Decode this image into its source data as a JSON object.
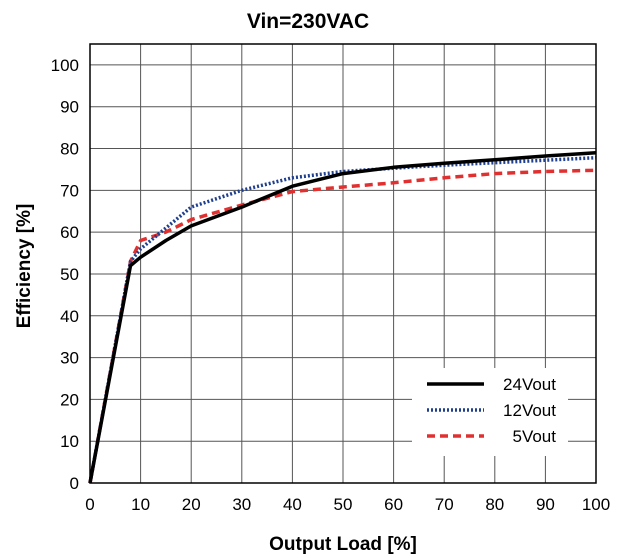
{
  "chart_data": {
    "type": "line",
    "title": "Vin=230VAC",
    "xlabel": "Output Load [%]",
    "ylabel": "Efficiency [%]",
    "xlim": [
      0,
      100
    ],
    "ylim": [
      0,
      105
    ],
    "xticks": [
      0,
      10,
      20,
      30,
      40,
      50,
      60,
      70,
      80,
      90,
      100
    ],
    "yticks": [
      0,
      10,
      20,
      30,
      40,
      50,
      60,
      70,
      80,
      90,
      100
    ],
    "grid": true,
    "legend_position": "bottom-right",
    "series": [
      {
        "name": "24Vout",
        "color": "#000000",
        "style": "solid",
        "x": [
          0,
          8,
          10,
          15,
          20,
          30,
          40,
          50,
          60,
          70,
          80,
          90,
          100
        ],
        "y": [
          0,
          52,
          54,
          58,
          61.5,
          66,
          71,
          74,
          75.5,
          76.5,
          77.3,
          78.2,
          79
        ]
      },
      {
        "name": "12Vout",
        "color": "#1f3f8f",
        "style": "dotted",
        "x": [
          0,
          8,
          10,
          15,
          20,
          30,
          40,
          50,
          60,
          70,
          80,
          90,
          100
        ],
        "y": [
          0,
          53,
          56,
          61,
          66,
          70,
          73,
          74.5,
          75.3,
          76,
          76.6,
          77.2,
          77.8
        ]
      },
      {
        "name": "5Vout",
        "color": "#e03030",
        "style": "dashed",
        "x": [
          0,
          8,
          10,
          15,
          20,
          30,
          40,
          50,
          60,
          70,
          80,
          90,
          100
        ],
        "y": [
          0,
          53,
          58,
          60,
          63,
          66.5,
          69.7,
          70.8,
          71.8,
          73,
          74,
          74.5,
          74.8
        ]
      }
    ]
  }
}
